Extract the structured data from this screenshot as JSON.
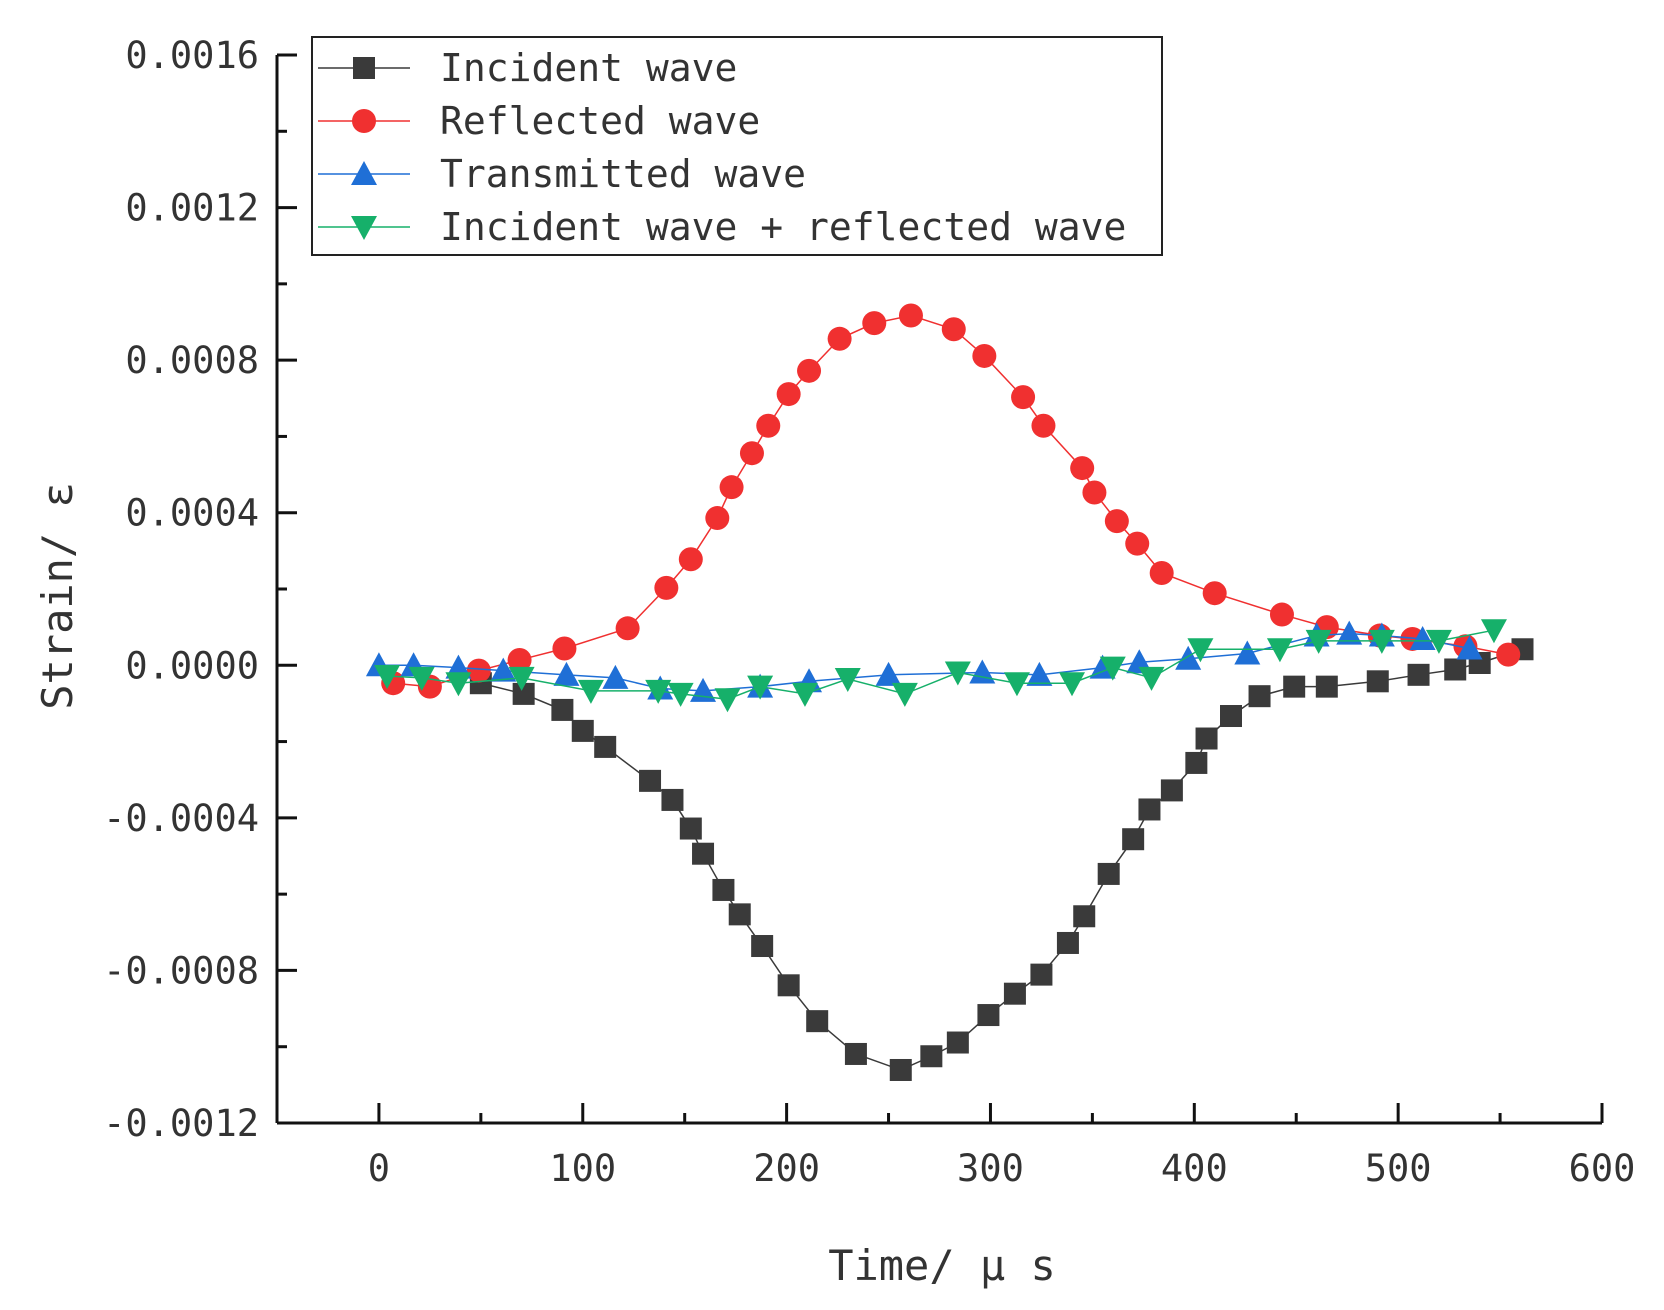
{
  "chart_data": {
    "type": "line",
    "title": "",
    "xlabel": "Time/ μ s",
    "ylabel": "Strain/ ε",
    "xlim": [
      -50,
      600
    ],
    "ylim": [
      -0.0012,
      0.0016
    ],
    "xticks": [
      0,
      100,
      200,
      300,
      400,
      500,
      600
    ],
    "xtick_labels": [
      "0",
      "100",
      "200",
      "300",
      "400",
      "500",
      "600"
    ],
    "yticks": [
      -0.0012,
      -0.0008,
      -0.0004,
      0,
      0.0004,
      0.0008,
      0.0012,
      0.0016
    ],
    "ytick_labels": [
      "-0.0012",
      "-0.0008",
      "-0.0004",
      "0.0000",
      "0.0004",
      "0.0008",
      "0.0012",
      "0.0016"
    ],
    "grid": false,
    "legend_position": "top-left",
    "series": [
      {
        "name": "Incident wave",
        "marker": "square",
        "color": "#3a3a3a",
        "x": [
          50,
          71,
          90,
          100,
          111,
          133,
          144,
          153,
          159,
          169,
          177,
          188,
          201,
          215,
          234,
          256,
          271,
          284,
          299,
          312,
          325,
          338,
          346,
          358,
          370,
          378,
          389,
          401,
          406,
          418,
          432,
          449,
          465,
          490,
          510,
          528,
          540,
          561
        ],
        "y": [
          -4.7e-05,
          -7.5e-05,
          -0.000117,
          -0.000172,
          -0.000214,
          -0.000303,
          -0.000353,
          -0.000428,
          -0.000494,
          -0.000589,
          -0.000653,
          -0.000736,
          -0.000839,
          -0.000933,
          -0.001019,
          -0.001061,
          -0.001025,
          -0.000989,
          -0.000917,
          -0.000861,
          -0.000811,
          -0.000728,
          -0.000658,
          -0.000547,
          -0.000456,
          -0.000378,
          -0.000328,
          -0.000256,
          -0.000192,
          -0.000133,
          -8.1e-05,
          -5.6e-05,
          -5.6e-05,
          -4.2e-05,
          -2.5e-05,
          -1.1e-05,
          6e-06,
          4.2e-05
        ]
      },
      {
        "name": "Reflected wave",
        "marker": "circle",
        "color": "#f03030",
        "x": [
          7,
          25,
          49,
          69,
          91,
          122,
          141,
          153,
          166,
          173,
          183,
          191,
          201,
          211,
          226,
          243,
          261,
          282,
          297,
          316,
          326,
          345,
          351,
          362,
          372,
          384,
          410,
          443,
          465,
          491,
          507,
          533,
          554
        ],
        "y": [
          -4.7e-05,
          -5.6e-05,
          -1.4e-05,
          1.4e-05,
          4.4e-05,
          9.7e-05,
          0.000203,
          0.000278,
          0.000386,
          0.000467,
          0.000556,
          0.000628,
          0.000711,
          0.000772,
          0.000856,
          0.000897,
          0.000917,
          0.000881,
          0.000811,
          0.000703,
          0.000628,
          0.000517,
          0.000453,
          0.000378,
          0.000319,
          0.000242,
          0.000189,
          0.000133,
          0.0001,
          7.8e-05,
          6.9e-05,
          5e-05,
          2.8e-05
        ]
      },
      {
        "name": "Transmitted wave",
        "marker": "triangle-up",
        "color": "#1f6fd6",
        "x": [
          0,
          17,
          39,
          61,
          92,
          116,
          138,
          159,
          187,
          211,
          250,
          296,
          324,
          355,
          373,
          397,
          426,
          460,
          476,
          492,
          512,
          535
        ],
        "y": [
          0,
          0,
          -6e-06,
          -1.4e-05,
          -2.5e-05,
          -3.3e-05,
          -6.1e-05,
          -6.7e-05,
          -5.6e-05,
          -4.2e-05,
          -2.5e-05,
          -1.9e-05,
          -2.5e-05,
          -6e-06,
          8e-06,
          1.7e-05,
          3.1e-05,
          7.8e-05,
          8.3e-05,
          7.8e-05,
          6.9e-05,
          4.4e-05
        ]
      },
      {
        "name": "Incident wave + reflected wave",
        "marker": "triangle-down",
        "color": "#16b06a",
        "x": [
          4,
          21,
          39,
          70,
          104,
          137,
          148,
          171,
          187,
          209,
          230,
          258,
          284,
          313,
          340,
          360,
          379,
          403,
          442,
          461,
          492,
          520,
          547
        ],
        "y": [
          -2.8e-05,
          -3.3e-05,
          -4.7e-05,
          -3.3e-05,
          -6.7e-05,
          -6.7e-05,
          -7.5e-05,
          -8.9e-05,
          -5.6e-05,
          -7.5e-05,
          -3.6e-05,
          -7.5e-05,
          -1.9e-05,
          -4.7e-05,
          -4.7e-05,
          -6e-06,
          -3.3e-05,
          4.2e-05,
          4.2e-05,
          6.4e-05,
          6.4e-05,
          6.4e-05,
          9.2e-05
        ]
      }
    ]
  }
}
